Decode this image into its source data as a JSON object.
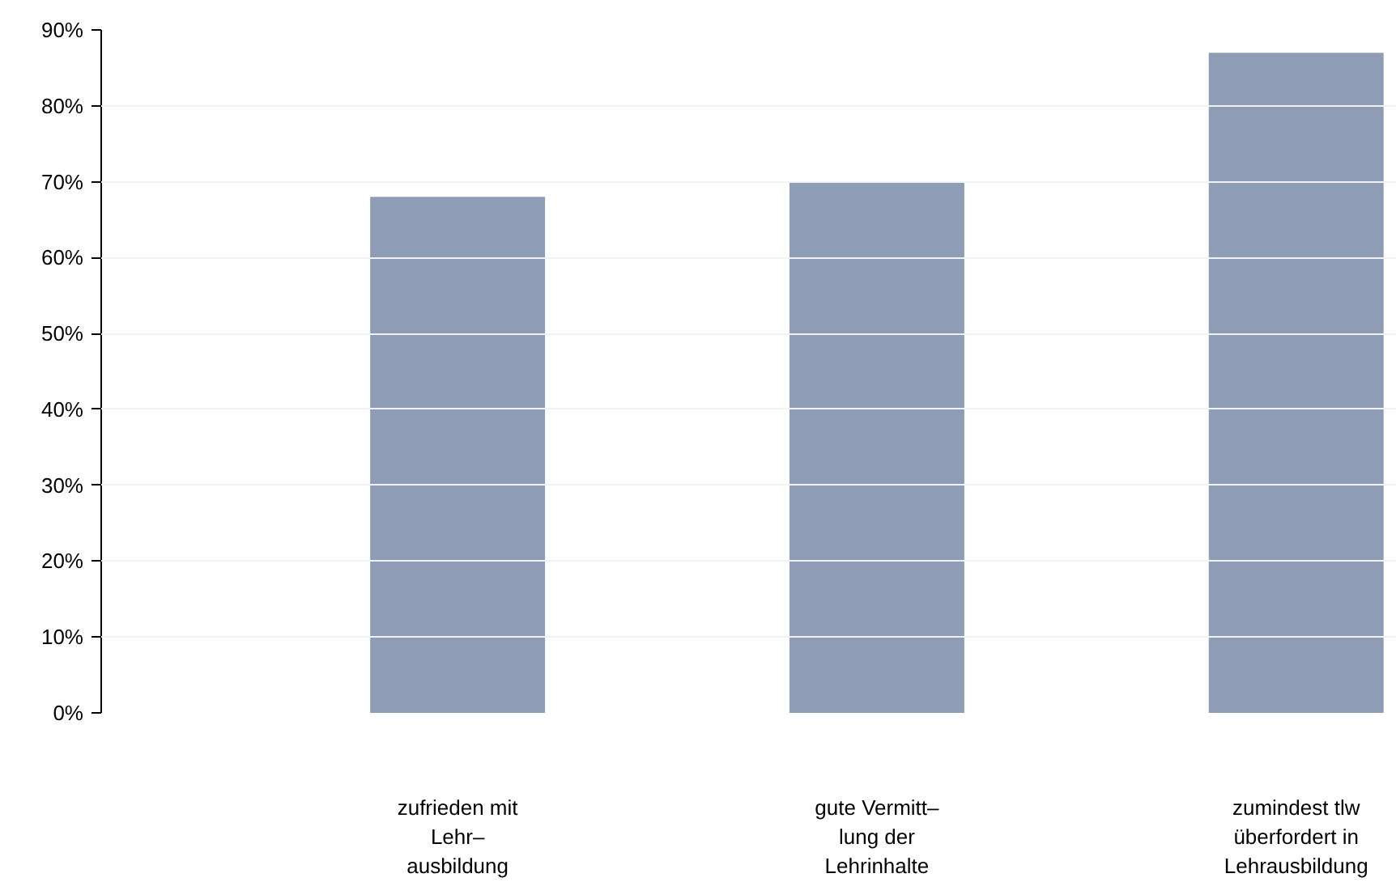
{
  "chart_data": {
    "type": "bar",
    "categories": [
      "zufrieden mit\nLehr–\nausbildung",
      "gute Vermitt–\nlung der\nLehrinhalte",
      "zumindest tlw\nüberfordert in\nLehrausbildung"
    ],
    "values": [
      68,
      70,
      87
    ],
    "color": "#8e9db5",
    "ylim": [
      0,
      90
    ],
    "yticks": [
      {
        "value": 0,
        "label": "0%"
      },
      {
        "value": 10,
        "label": "10%"
      },
      {
        "value": 20,
        "label": "20%"
      },
      {
        "value": 30,
        "label": "30%"
      },
      {
        "value": 40,
        "label": "40%"
      },
      {
        "value": 50,
        "label": "50%"
      },
      {
        "value": 60,
        "label": "60%"
      },
      {
        "value": 70,
        "label": "70%"
      },
      {
        "value": 80,
        "label": "80%"
      },
      {
        "value": 90,
        "label": "90%"
      }
    ],
    "grid": "y"
  }
}
